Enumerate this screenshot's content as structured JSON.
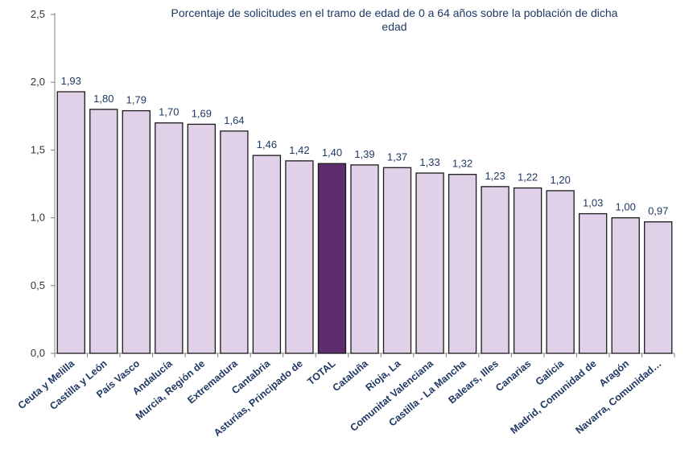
{
  "chart_data": {
    "type": "bar",
    "title_line1": "Porcentaje de solicitudes en el tramo de edad de 0 a 64 años sobre la población de dicha",
    "title_line2": "edad",
    "categories": [
      "Ceuta y Melilla",
      "Castilla y León",
      "País Vasco",
      "Andalucía",
      "Murcia, Región de",
      "Extremadura",
      "Cantabria",
      "Asturias, Principado de",
      "TOTAL",
      "Cataluña",
      "Rioja, La",
      "Comunitat Valenciana",
      "Castilla - La Mancha",
      "Balears, Illes",
      "Canarias",
      "Galicia",
      "Madrid, Comunidad de",
      "Aragón",
      "Navarra, Comunidad…"
    ],
    "values": [
      1.93,
      1.8,
      1.79,
      1.7,
      1.69,
      1.64,
      1.46,
      1.42,
      1.4,
      1.39,
      1.37,
      1.33,
      1.32,
      1.23,
      1.22,
      1.2,
      1.03,
      1.0,
      0.97
    ],
    "value_labels": [
      "1,93",
      "1,80",
      "1,79",
      "1,70",
      "1,69",
      "1,64",
      "1,46",
      "1,42",
      "1,40",
      "1,39",
      "1,37",
      "1,33",
      "1,32",
      "1,23",
      "1,22",
      "1,20",
      "1,03",
      "1,00",
      "0,97"
    ],
    "highlight_index": 8,
    "ylim": [
      0,
      2.5
    ],
    "yticks": [
      0,
      0.5,
      1.0,
      1.5,
      2.0,
      2.5
    ],
    "ytick_labels": [
      "0,0",
      "0,5",
      "1,0",
      "1,5",
      "2,0",
      "2,5"
    ],
    "bar_color": "#e0d0e8",
    "highlight_color": "#5e2d6e",
    "bar_edge_color": "#1a1a1a",
    "label_color": "#1f3864",
    "grid": false,
    "legend": "none"
  }
}
